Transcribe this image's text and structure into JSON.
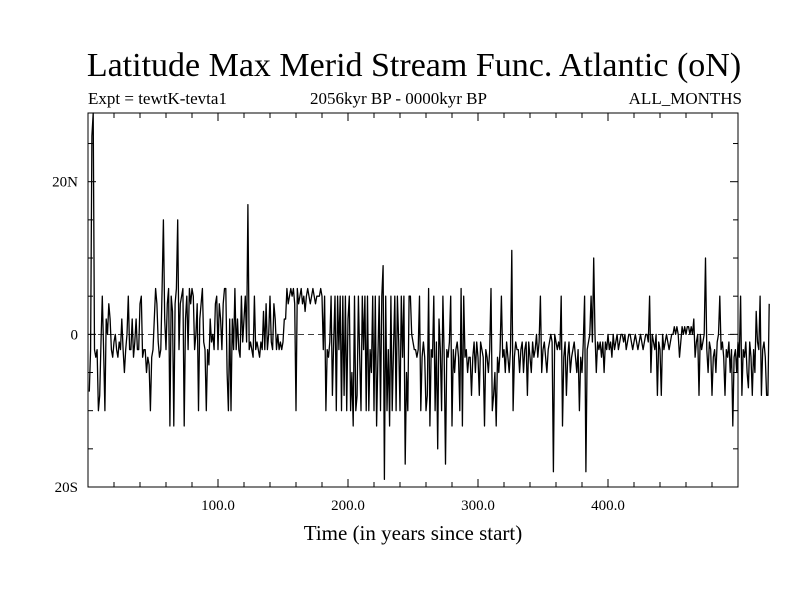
{
  "chart_data": {
    "type": "line",
    "title": "Latitude Max Merid Stream Func. Atlantic (oN)",
    "subtitle_left": "Expt = tewtK-tevta1",
    "subtitle_center": "2056kyr BP - 0000kyr BP",
    "subtitle_right": "ALL_MONTHS",
    "xlabel": "Time (in years since start)",
    "ylabel": "",
    "xlim": [
      0,
      500
    ],
    "ylim": [
      -20,
      29
    ],
    "x_ticks": [
      100,
      200,
      300,
      400
    ],
    "x_tick_labels": [
      "100.0",
      "200.0",
      "300.0",
      "400.0"
    ],
    "y_ticks": [
      -20,
      0,
      20
    ],
    "y_tick_labels": [
      "20S",
      "0",
      "20N"
    ],
    "zero_line": true,
    "grid": false,
    "series": [
      {
        "name": "",
        "x_start": 1,
        "x_step": 1,
        "values": [
          -7.5,
          -2,
          26,
          29,
          -2,
          -3,
          -2,
          -10,
          -8,
          -1,
          5,
          -2,
          -10,
          2,
          0,
          4,
          2,
          -2,
          -3,
          -1,
          0,
          -2,
          -3,
          -1,
          -2,
          2,
          -2,
          -5,
          -2,
          0,
          5,
          -2,
          -2,
          2,
          -3,
          -1,
          2,
          -2,
          -2,
          4,
          5,
          -3,
          -2,
          -2,
          -5,
          -3,
          -4,
          -10,
          -3,
          -2,
          2,
          6,
          4,
          -1,
          -3,
          -2,
          6,
          15,
          2,
          -2,
          4,
          6,
          -12,
          5,
          3,
          -12,
          4,
          6,
          15,
          -2,
          4,
          5,
          6,
          -12,
          2,
          5,
          -2,
          6,
          4,
          6,
          5,
          -2,
          0,
          4,
          -10,
          2,
          4,
          6,
          -1,
          -2,
          -10,
          -2,
          -4,
          2,
          -1,
          0,
          -2,
          4,
          5,
          -2,
          4,
          2,
          -2,
          4,
          6,
          6,
          -5,
          -10,
          2,
          -10,
          2,
          -2,
          6,
          -2,
          2,
          -2,
          -3,
          5,
          -1,
          2,
          5,
          -1,
          17,
          -2,
          -1,
          -2,
          -3,
          5,
          -2,
          -1,
          -2,
          -3,
          -1,
          -2,
          3,
          -2,
          4,
          -2,
          0,
          5,
          -1,
          -2,
          4,
          2,
          -2,
          0,
          -2,
          -1,
          -2,
          -1,
          2,
          2,
          6,
          4,
          5,
          6,
          5,
          6,
          4,
          -10,
          6,
          4,
          5,
          6,
          4,
          5,
          3,
          5,
          6,
          5,
          4,
          5,
          6,
          5,
          4,
          5,
          5,
          5,
          6,
          5,
          -2,
          5,
          -10,
          -2,
          -3,
          -1,
          5,
          -8,
          -1,
          5,
          -10,
          5,
          -2,
          5,
          -10,
          5,
          -8,
          5,
          -10,
          2,
          5,
          -10,
          -5,
          -12,
          5,
          -10,
          -8,
          5,
          -3,
          -10,
          5,
          -2,
          5,
          -10,
          5,
          -10,
          -2,
          -5,
          5,
          -10,
          5,
          -12,
          -3,
          5,
          -10,
          5,
          9,
          -19,
          5,
          -10,
          -2,
          -12,
          5,
          -10,
          -2,
          5,
          -10,
          5,
          -1,
          -10,
          5,
          -3,
          5,
          -17,
          -5,
          -10,
          5,
          5,
          0,
          -1,
          -2,
          -2,
          -3,
          -2,
          5,
          -10,
          -3,
          -1,
          -3,
          -10,
          -8,
          6,
          -12,
          -2,
          -3,
          5,
          -10,
          -1,
          -15,
          2,
          -2,
          -10,
          5,
          -3,
          -17,
          -2,
          -3,
          -1,
          5,
          -12,
          -2,
          -5,
          -2,
          -1,
          -3,
          -10,
          6,
          -12,
          5,
          -3,
          -2,
          -5,
          -3,
          -3,
          -8,
          -3,
          -1,
          -5,
          -1,
          -3,
          -8,
          -1,
          -2,
          -3,
          -12,
          -2,
          -3,
          -5,
          -2,
          6,
          -10,
          -8,
          -5,
          -12,
          -3,
          -5,
          -2,
          5,
          -3,
          -2,
          -5,
          -1,
          -3,
          -5,
          -2,
          11,
          -10,
          -3,
          -1,
          -2,
          -2,
          -5,
          -2,
          -1,
          -5,
          -2,
          -1,
          -8,
          -1,
          -3,
          -5,
          -1,
          -3,
          -2,
          0,
          -3,
          -1,
          5,
          -5,
          -2,
          -1,
          -3,
          -5,
          -2,
          -1,
          0,
          -1,
          -18,
          0,
          -1,
          -2,
          -1,
          -2,
          5,
          -12,
          -3,
          -1,
          -8,
          -3,
          -1,
          -5,
          -3,
          -2,
          -1,
          -3,
          -5,
          -2,
          -10,
          -3,
          -5,
          -1,
          5,
          -18,
          -2,
          -1,
          0,
          5,
          -1,
          10,
          0,
          -5,
          -1,
          -2,
          -1,
          -3,
          -1,
          -5,
          -1,
          -2,
          0,
          -2,
          -1,
          -3,
          0,
          -2,
          -1,
          0,
          -2,
          -1,
          0,
          0,
          -1,
          0,
          -2,
          -1,
          0,
          0,
          -1,
          -2,
          -1,
          0,
          -1,
          -2,
          -1,
          0,
          -1,
          -2,
          -1,
          0,
          0,
          -1,
          5,
          -5,
          0,
          -1,
          -2,
          0,
          -8,
          -1,
          -2,
          -8,
          0,
          -2,
          -1,
          0,
          -1,
          -2,
          -1,
          0,
          0,
          1,
          0,
          1,
          0,
          -3,
          -1,
          1,
          0,
          1,
          0,
          1,
          1,
          0,
          1,
          0,
          2,
          -3,
          -1,
          0,
          -8,
          0,
          -2,
          -1,
          0,
          10,
          -2,
          -5,
          -1,
          -2,
          -8,
          -3,
          -2,
          -5,
          -1,
          0,
          5,
          -2,
          -1,
          -3,
          -8,
          -2,
          -3,
          -1,
          -5,
          -2,
          -12,
          -3,
          -2,
          -5,
          -1,
          -3,
          5,
          -8,
          -2,
          -3,
          -1,
          -5,
          -7,
          -1,
          -3,
          -8,
          -2,
          -5,
          3,
          -1,
          -2,
          5,
          -8,
          -2,
          -1,
          -3,
          -8,
          -8,
          4
        ]
      }
    ]
  }
}
